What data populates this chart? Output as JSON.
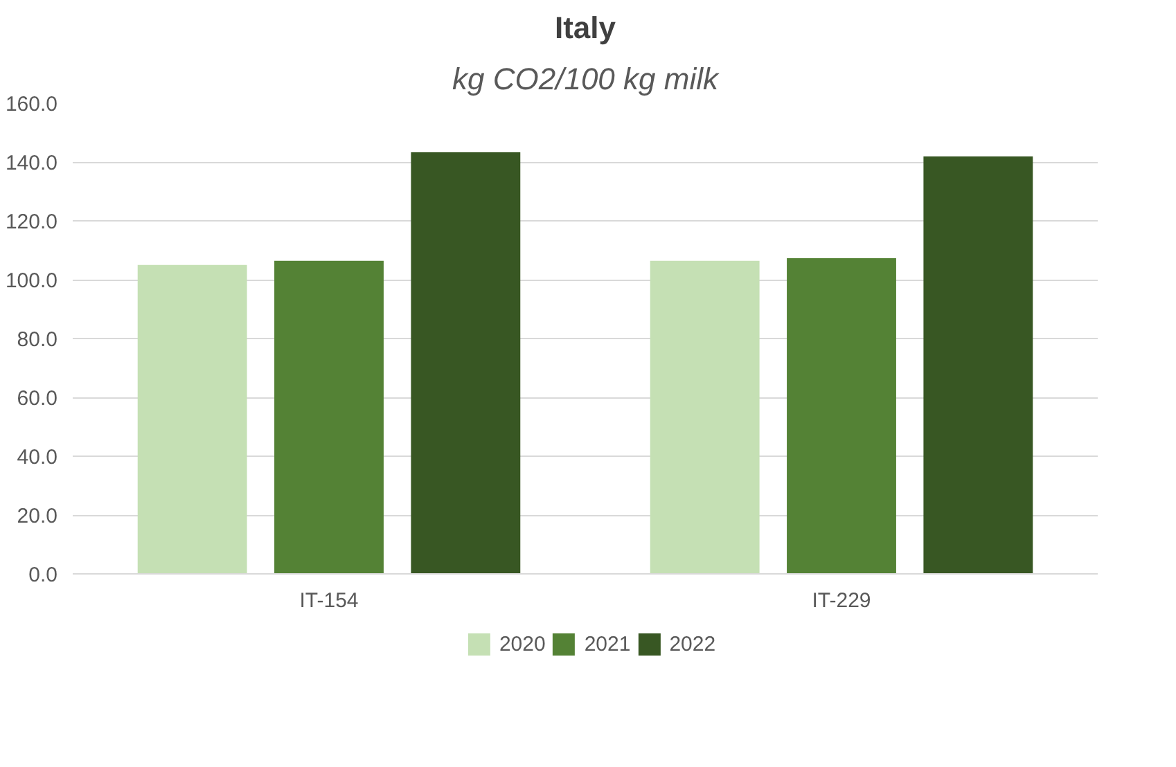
{
  "chart_data": {
    "type": "bar",
    "title": "Italy",
    "subtitle": "kg CO2/100 kg milk",
    "categories": [
      "IT-154",
      "IT-229"
    ],
    "series": [
      {
        "name": "2020",
        "color": "#c5e0b4",
        "values": [
          105,
          106.4
        ]
      },
      {
        "name": "2021",
        "color": "#548235",
        "values": [
          106.4,
          107.3
        ]
      },
      {
        "name": "2022",
        "color": "#385723",
        "values": [
          143.3,
          141.9
        ]
      }
    ],
    "ylim": [
      0,
      160
    ],
    "yticks": [
      {
        "value": 0,
        "label": "0.0"
      },
      {
        "value": 20,
        "label": "20.0"
      },
      {
        "value": 40,
        "label": "40.0"
      },
      {
        "value": 60,
        "label": "60.0"
      },
      {
        "value": 80,
        "label": "80.0"
      },
      {
        "value": 100,
        "label": "100.0"
      },
      {
        "value": 120,
        "label": "120.0"
      },
      {
        "value": 140,
        "label": "140.0"
      },
      {
        "value": 160,
        "label": "160.0"
      }
    ],
    "grid": "y",
    "legend": "bottom"
  }
}
